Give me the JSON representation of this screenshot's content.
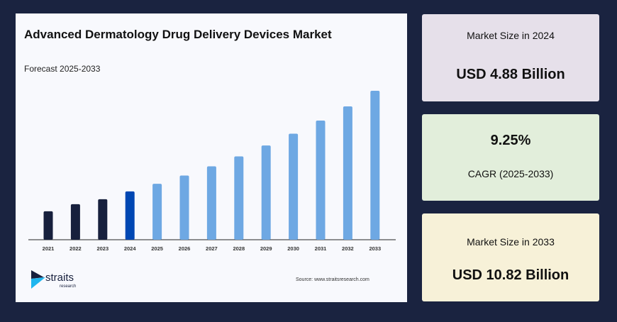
{
  "chart_data": {
    "type": "bar",
    "title": "Advanced Dermatology Drug Delivery Devices Market",
    "subtitle": "Forecast 2025-2033",
    "categories": [
      "2021",
      "2022",
      "2023",
      "2024",
      "2025",
      "2026",
      "2027",
      "2028",
      "2029",
      "2030",
      "2031",
      "2032",
      "2033"
    ],
    "values": [
      3.71,
      4.13,
      4.42,
      4.88,
      5.33,
      5.82,
      6.36,
      6.95,
      7.59,
      8.29,
      9.06,
      9.9,
      10.82
    ],
    "unit": "USD Billion",
    "ylim": [
      2.03,
      10.82
    ],
    "grid": false,
    "colors": {
      "historical": "#17203d",
      "base_year": "#0047b3",
      "forecast": "#6ea8e3"
    },
    "source": "Source: www.straitsresearch.com"
  },
  "logo": {
    "name": "straits",
    "tagline": "research"
  },
  "cards": [
    {
      "label": "Market Size in 2024",
      "value": "USD 4.88 Billion"
    },
    {
      "value": "9.25%",
      "label": "CAGR (2025-2033)"
    },
    {
      "label": "Market Size in 2033",
      "value": "USD 10.82 Billion"
    }
  ]
}
